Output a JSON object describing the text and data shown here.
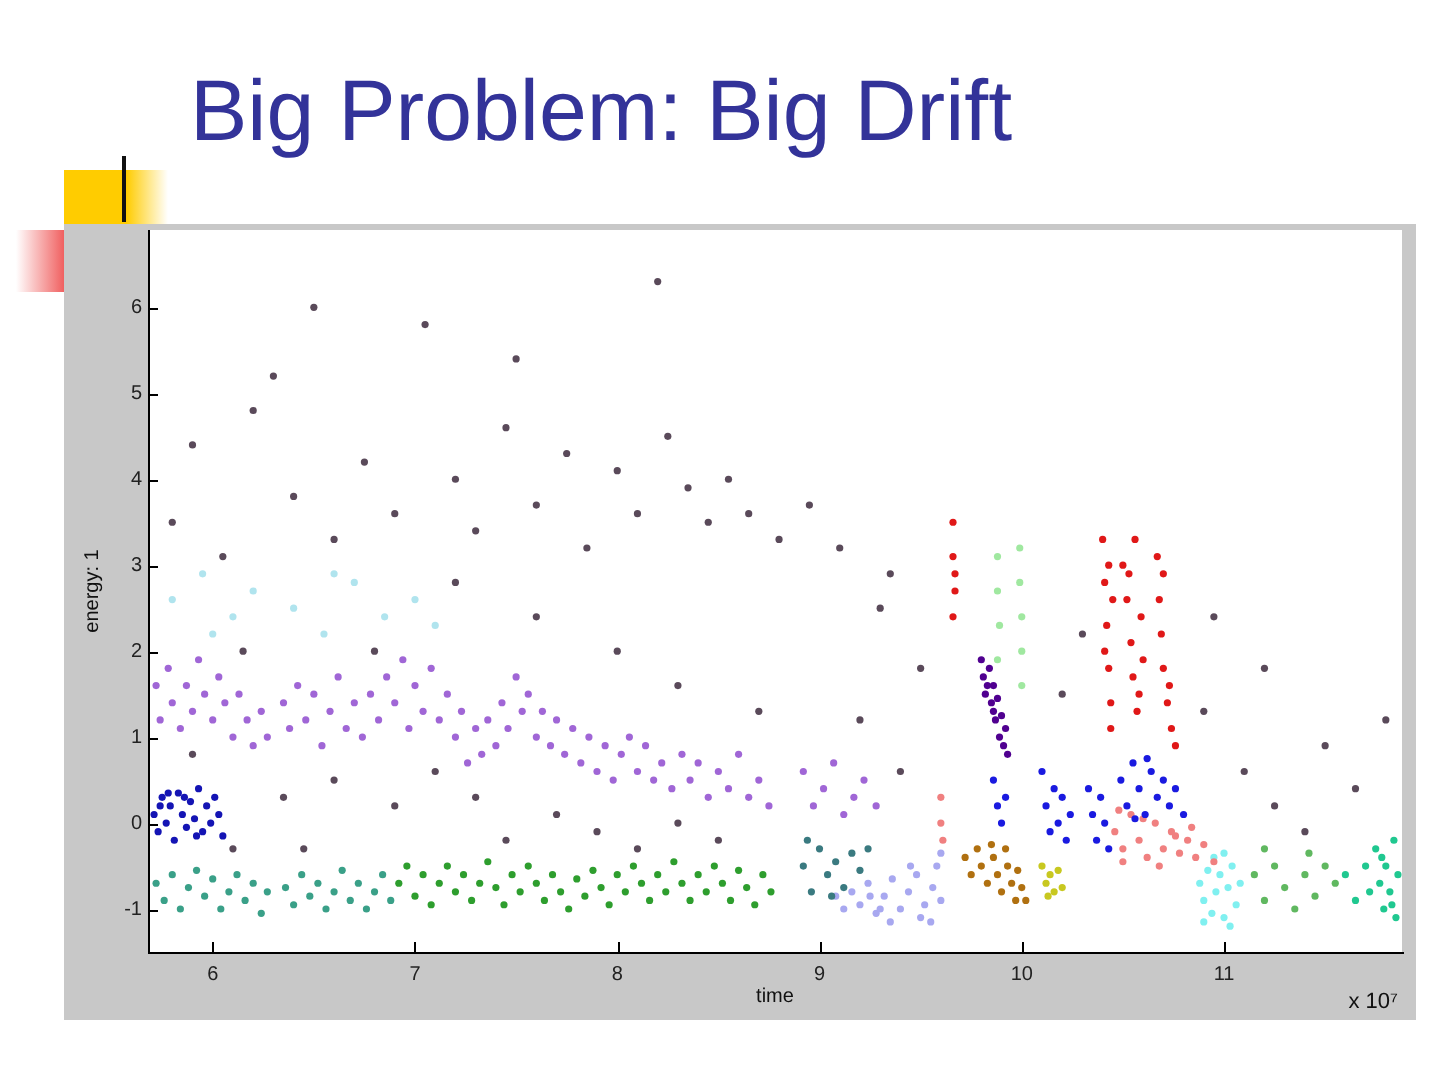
{
  "chart_data": {
    "type": "scatter",
    "title": "Big Problem: Big Drift",
    "xlabel": "time",
    "ylabel": "energy: 1",
    "xlim": [
      5.68,
      11.88
    ],
    "ylim": [
      -1.5,
      6.9
    ],
    "xticks": [
      6,
      7,
      8,
      9,
      10,
      11
    ],
    "yticks": [
      -1,
      0,
      1,
      2,
      3,
      4,
      5,
      6
    ],
    "grid": false,
    "legend": false,
    "marker": "circle",
    "annotations": [
      "x 10⁷"
    ],
    "series": [
      {
        "color": "#5a4a5a",
        "x": [
          5.8,
          5.9,
          6.05,
          6.2,
          6.4,
          6.5,
          6.6,
          6.75,
          6.9,
          7.05,
          7.2,
          7.3,
          7.45,
          7.6,
          7.75,
          7.85,
          8.0,
          8.1,
          8.25,
          8.35,
          8.45,
          8.55,
          8.65,
          8.8,
          8.95,
          9.1,
          9.3,
          6.3,
          7.5,
          8.2,
          6.15,
          6.6,
          6.9,
          7.1,
          7.3,
          7.7,
          7.9,
          8.3,
          8.5,
          8.7,
          8.3,
          8.0,
          7.6,
          7.2,
          6.8,
          6.35,
          6.1,
          5.9,
          9.2,
          9.4,
          9.5,
          10.3,
          10.2,
          10.9,
          11.1,
          11.25,
          11.4,
          11.5,
          11.65,
          11.8,
          10.95,
          11.2,
          9.35,
          6.45,
          7.45,
          8.1
        ],
        "values": [
          3.5,
          4.4,
          3.1,
          4.8,
          3.8,
          6.0,
          3.3,
          4.2,
          3.6,
          5.8,
          4.0,
          3.4,
          4.6,
          3.7,
          4.3,
          3.2,
          4.1,
          3.6,
          4.5,
          3.9,
          3.5,
          4.0,
          3.6,
          3.3,
          3.7,
          3.2,
          2.5,
          5.2,
          5.4,
          6.3,
          2.0,
          0.5,
          0.2,
          0.6,
          0.3,
          0.1,
          -0.1,
          0.0,
          -0.2,
          1.3,
          1.6,
          2.0,
          2.4,
          2.8,
          2.0,
          0.3,
          -0.3,
          0.8,
          1.2,
          0.6,
          1.8,
          2.2,
          1.5,
          1.3,
          0.6,
          0.2,
          -0.1,
          0.9,
          0.4,
          1.2,
          2.4,
          1.8,
          2.9,
          -0.3,
          -0.2,
          -0.3
        ]
      },
      {
        "color": "#b0e4ee",
        "x": [
          5.8,
          5.95,
          6.1,
          6.2,
          6.4,
          6.55,
          6.7,
          6.85,
          7.0,
          7.1,
          6.0,
          6.6
        ],
        "values": [
          2.6,
          2.9,
          2.4,
          2.7,
          2.5,
          2.2,
          2.8,
          2.4,
          2.6,
          2.3,
          2.2,
          2.9
        ]
      },
      {
        "color": "#a066d6",
        "x": [
          5.72,
          5.74,
          5.78,
          5.8,
          5.84,
          5.87,
          5.9,
          5.93,
          5.96,
          6.0,
          6.03,
          6.06,
          6.1,
          6.13,
          6.17,
          6.2,
          6.24,
          6.27,
          6.35,
          6.38,
          6.42,
          6.46,
          6.5,
          6.54,
          6.58,
          6.62,
          6.66,
          6.7,
          6.74,
          6.78,
          6.82,
          6.86,
          6.9,
          6.94,
          6.97,
          7.0,
          7.04,
          7.08,
          7.12,
          7.16,
          7.2,
          7.23,
          7.26,
          7.3,
          7.33,
          7.36,
          7.4,
          7.43,
          7.46,
          7.5,
          7.53,
          7.56,
          7.6,
          7.63,
          7.67,
          7.7,
          7.74,
          7.78,
          7.82,
          7.86,
          7.9,
          7.94,
          7.98,
          8.02,
          8.06,
          8.1,
          8.14,
          8.18,
          8.22,
          8.27,
          8.32,
          8.36,
          8.4,
          8.45,
          8.5,
          8.55,
          8.6,
          8.65,
          8.7,
          8.75,
          8.92,
          8.97,
          9.02,
          9.07,
          9.12,
          9.17,
          9.22,
          9.28
        ],
        "values": [
          1.6,
          1.2,
          1.8,
          1.4,
          1.1,
          1.6,
          1.3,
          1.9,
          1.5,
          1.2,
          1.7,
          1.4,
          1.0,
          1.5,
          1.2,
          0.9,
          1.3,
          1.0,
          1.4,
          1.1,
          1.6,
          1.2,
          1.5,
          0.9,
          1.3,
          1.7,
          1.1,
          1.4,
          1.0,
          1.5,
          1.2,
          1.7,
          1.4,
          1.9,
          1.1,
          1.6,
          1.3,
          1.8,
          1.2,
          1.5,
          1.0,
          1.3,
          0.7,
          1.1,
          0.8,
          1.2,
          0.9,
          1.4,
          1.1,
          1.7,
          1.3,
          1.5,
          1.0,
          1.3,
          0.9,
          1.2,
          0.8,
          1.1,
          0.7,
          1.0,
          0.6,
          0.9,
          0.5,
          0.8,
          1.0,
          0.6,
          0.9,
          0.5,
          0.7,
          0.4,
          0.8,
          0.5,
          0.7,
          0.3,
          0.6,
          0.4,
          0.8,
          0.3,
          0.5,
          0.2,
          0.6,
          0.2,
          0.4,
          0.7,
          0.1,
          0.3,
          0.5,
          0.2
        ]
      },
      {
        "color": "#1414b4",
        "x": [
          5.71,
          5.73,
          5.75,
          5.77,
          5.79,
          5.81,
          5.83,
          5.85,
          5.87,
          5.89,
          5.91,
          5.93,
          5.95,
          5.97,
          5.99,
          6.01,
          6.03,
          6.05,
          5.74,
          5.86,
          5.92,
          5.78
        ],
        "values": [
          0.1,
          -0.1,
          0.3,
          0.0,
          0.2,
          -0.2,
          0.35,
          0.1,
          -0.05,
          0.25,
          0.05,
          0.4,
          -0.1,
          0.2,
          0.0,
          0.3,
          0.1,
          -0.15,
          0.2,
          0.3,
          -0.15,
          0.35
        ]
      },
      {
        "color": "#3aa088",
        "x": [
          5.72,
          5.76,
          5.8,
          5.84,
          5.88,
          5.92,
          5.96,
          6.0,
          6.04,
          6.08,
          6.12,
          6.16,
          6.2,
          6.24,
          6.27,
          6.36,
          6.4,
          6.44,
          6.48,
          6.52,
          6.56,
          6.6,
          6.64,
          6.68,
          6.72,
          6.76,
          6.8,
          6.84,
          6.88
        ],
        "values": [
          -0.7,
          -0.9,
          -0.6,
          -1.0,
          -0.75,
          -0.55,
          -0.85,
          -0.65,
          -1.0,
          -0.8,
          -0.6,
          -0.9,
          -0.7,
          -1.05,
          -0.8,
          -0.75,
          -0.95,
          -0.6,
          -0.85,
          -0.7,
          -1.0,
          -0.8,
          -0.55,
          -0.9,
          -0.7,
          -1.0,
          -0.8,
          -0.6,
          -0.9
        ]
      },
      {
        "color": "#2e9e2e",
        "x": [
          6.92,
          6.96,
          7.0,
          7.04,
          7.08,
          7.12,
          7.16,
          7.2,
          7.24,
          7.28,
          7.32,
          7.36,
          7.4,
          7.44,
          7.48,
          7.52,
          7.56,
          7.6,
          7.64,
          7.68,
          7.72,
          7.76,
          7.8,
          7.84,
          7.88,
          7.92,
          7.96,
          8.0,
          8.04,
          8.08,
          8.12,
          8.16,
          8.2,
          8.24,
          8.28,
          8.32,
          8.36,
          8.4,
          8.44,
          8.48,
          8.52,
          8.56,
          8.6,
          8.64,
          8.68,
          8.72,
          8.76
        ],
        "values": [
          -0.7,
          -0.5,
          -0.85,
          -0.6,
          -0.95,
          -0.7,
          -0.5,
          -0.8,
          -0.6,
          -0.9,
          -0.7,
          -0.45,
          -0.75,
          -0.95,
          -0.6,
          -0.8,
          -0.5,
          -0.7,
          -0.9,
          -0.6,
          -0.8,
          -1.0,
          -0.65,
          -0.85,
          -0.55,
          -0.75,
          -0.95,
          -0.6,
          -0.8,
          -0.5,
          -0.7,
          -0.9,
          -0.6,
          -0.8,
          -0.45,
          -0.7,
          -0.9,
          -0.6,
          -0.8,
          -0.5,
          -0.7,
          -0.9,
          -0.55,
          -0.75,
          -0.95,
          -0.6,
          -0.8
        ]
      },
      {
        "color": "#3a7a80",
        "x": [
          8.92,
          8.96,
          9.0,
          9.04,
          9.08,
          9.12,
          9.16,
          9.2,
          9.24,
          8.94,
          9.06
        ],
        "values": [
          -0.5,
          -0.8,
          -0.3,
          -0.6,
          -0.45,
          -0.75,
          -0.35,
          -0.55,
          -0.3,
          -0.2,
          -0.85
        ]
      },
      {
        "color": "#a8a8f0",
        "x": [
          9.08,
          9.12,
          9.16,
          9.2,
          9.24,
          9.28,
          9.32,
          9.36,
          9.4,
          9.44,
          9.48,
          9.52,
          9.56,
          9.58,
          9.6,
          9.6,
          9.35,
          9.5,
          9.45,
          9.55,
          9.25,
          9.3
        ],
        "values": [
          -0.85,
          -1.0,
          -0.8,
          -0.95,
          -0.7,
          -1.05,
          -0.85,
          -0.65,
          -1.0,
          -0.8,
          -0.6,
          -0.95,
          -0.75,
          -0.5,
          -0.9,
          -0.35,
          -1.15,
          -1.1,
          -0.5,
          -1.15,
          -0.85,
          -1.0
        ]
      },
      {
        "color": "#b07010",
        "x": [
          9.72,
          9.75,
          9.78,
          9.8,
          9.83,
          9.86,
          9.88,
          9.9,
          9.93,
          9.95,
          9.97,
          10.0,
          10.02,
          9.85,
          9.92,
          9.98
        ],
        "values": [
          -0.4,
          -0.6,
          -0.3,
          -0.5,
          -0.7,
          -0.4,
          -0.6,
          -0.8,
          -0.5,
          -0.7,
          -0.9,
          -0.75,
          -0.9,
          -0.25,
          -0.3,
          -0.55
        ]
      },
      {
        "color": "#a0e8a0",
        "x": [
          9.88,
          9.88,
          9.89,
          9.88,
          9.99,
          9.99,
          10.0,
          10.0,
          10.0
        ],
        "values": [
          3.1,
          2.7,
          2.3,
          1.9,
          3.2,
          2.8,
          2.4,
          2.0,
          1.6
        ]
      },
      {
        "color": "#500090",
        "x": [
          9.8,
          9.81,
          9.82,
          9.84,
          9.85,
          9.86,
          9.87,
          9.88,
          9.89,
          9.9,
          9.91,
          9.92,
          9.93,
          9.83,
          9.86
        ],
        "values": [
          1.9,
          1.7,
          1.5,
          1.8,
          1.4,
          1.6,
          1.2,
          1.45,
          1.0,
          1.25,
          0.9,
          1.1,
          0.8,
          1.6,
          1.3
        ]
      },
      {
        "color": "#c8c820",
        "x": [
          10.1,
          10.12,
          10.14,
          10.16,
          10.18,
          10.2,
          10.13
        ],
        "values": [
          -0.5,
          -0.7,
          -0.6,
          -0.8,
          -0.55,
          -0.75,
          -0.85
        ]
      },
      {
        "color": "#1a1ae0",
        "x": [
          9.86,
          9.88,
          9.9,
          9.92,
          10.1,
          10.12,
          10.14,
          10.16,
          10.18,
          10.2,
          10.22,
          10.24,
          10.33,
          10.35,
          10.37,
          10.39,
          10.41,
          10.43,
          10.49,
          10.52,
          10.55,
          10.58,
          10.61,
          10.64,
          10.67,
          10.7,
          10.73,
          10.76,
          10.8,
          10.56,
          10.62
        ],
        "values": [
          0.5,
          0.2,
          0.0,
          0.3,
          0.6,
          0.2,
          -0.1,
          0.4,
          0.0,
          0.3,
          -0.2,
          0.1,
          0.4,
          0.1,
          -0.2,
          0.3,
          0.0,
          -0.3,
          0.5,
          0.2,
          0.7,
          0.4,
          0.1,
          0.6,
          0.3,
          0.5,
          0.2,
          0.4,
          0.1,
          0.05,
          0.75
        ]
      },
      {
        "color": "#f08080",
        "x": [
          9.6,
          9.6,
          9.61,
          10.46,
          10.5,
          10.54,
          10.58,
          10.62,
          10.66,
          10.7,
          10.74,
          10.78,
          10.82,
          10.86,
          10.9,
          10.95,
          10.5,
          10.6,
          10.68,
          10.76,
          10.48,
          10.84
        ],
        "values": [
          0.3,
          0.0,
          -0.2,
          -0.1,
          -0.3,
          0.1,
          -0.2,
          -0.4,
          0.0,
          -0.3,
          -0.1,
          -0.35,
          -0.2,
          -0.4,
          -0.25,
          -0.45,
          -0.45,
          0.05,
          -0.5,
          -0.15,
          0.15,
          -0.05
        ]
      },
      {
        "color": "#e01818",
        "x": [
          10.4,
          10.41,
          10.42,
          10.43,
          10.44,
          10.45,
          10.41,
          10.43,
          10.44,
          10.5,
          10.52,
          10.54,
          10.55,
          10.57,
          10.59,
          10.6,
          10.53,
          10.58,
          10.56,
          10.67,
          10.68,
          10.69,
          10.7,
          10.72,
          10.74,
          10.76,
          10.7,
          10.73,
          9.66,
          9.66,
          9.67,
          9.66,
          9.67
        ],
        "values": [
          3.3,
          2.8,
          2.3,
          1.8,
          1.4,
          2.6,
          2.0,
          3.0,
          1.1,
          3.0,
          2.6,
          2.1,
          1.7,
          1.3,
          2.4,
          1.9,
          2.9,
          1.5,
          3.3,
          3.1,
          2.6,
          2.2,
          1.8,
          1.4,
          1.1,
          0.9,
          2.9,
          1.6,
          3.5,
          3.1,
          2.7,
          2.4,
          2.9
        ]
      },
      {
        "color": "#80f0f0",
        "x": [
          10.88,
          10.9,
          10.92,
          10.94,
          10.96,
          10.98,
          11.0,
          11.02,
          11.04,
          11.06,
          11.08,
          10.95,
          11.0,
          10.9,
          11.03
        ],
        "values": [
          -0.7,
          -0.9,
          -0.55,
          -1.05,
          -0.8,
          -0.6,
          -1.1,
          -0.75,
          -0.5,
          -0.95,
          -0.7,
          -0.4,
          -0.35,
          -1.15,
          -1.2
        ]
      },
      {
        "color": "#60b860",
        "x": [
          11.15,
          11.2,
          11.25,
          11.3,
          11.35,
          11.4,
          11.45,
          11.5,
          11.55,
          11.2,
          11.42
        ],
        "values": [
          -0.6,
          -0.9,
          -0.5,
          -0.75,
          -1.0,
          -0.6,
          -0.85,
          -0.5,
          -0.7,
          -0.3,
          -0.35
        ]
      },
      {
        "color": "#20c890",
        "x": [
          11.75,
          11.77,
          11.79,
          11.8,
          11.82,
          11.84,
          11.85,
          11.86,
          11.78,
          11.83,
          11.6,
          11.65,
          11.7,
          11.72
        ],
        "values": [
          -0.3,
          -0.7,
          -1.0,
          -0.5,
          -0.8,
          -0.2,
          -1.1,
          -0.6,
          -0.4,
          -0.95,
          -0.6,
          -0.9,
          -0.5,
          -0.8
        ]
      }
    ]
  }
}
